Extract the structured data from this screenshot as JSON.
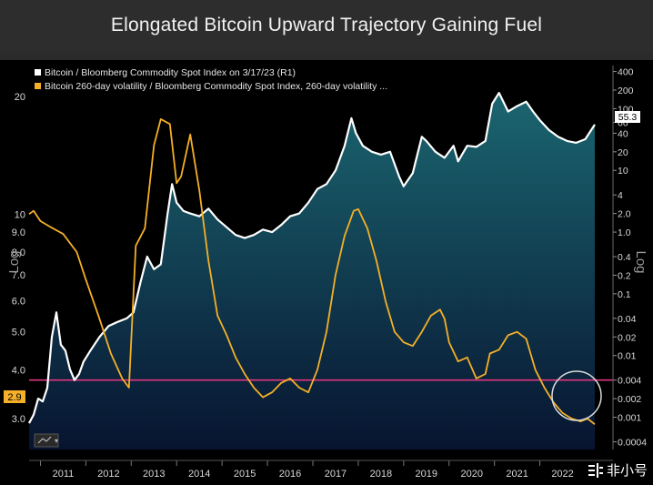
{
  "chart_data": {
    "type": "line",
    "title": "Elongated Bitcoin Upward Trajectory Gaining Fuel",
    "x_ticks": [
      "2011",
      "2012",
      "2013",
      "2014",
      "2015",
      "2016",
      "2017",
      "2018",
      "2019",
      "2020",
      "2021",
      "2022"
    ],
    "x_range": [
      2010.75,
      2023.21
    ],
    "left_axis": {
      "label": "Log",
      "scale": "log",
      "ticks": [
        "20",
        "10",
        "9.0",
        "8.0",
        "7.0",
        "6.0",
        "5.0",
        "4.0",
        "3.0"
      ],
      "range": [
        2.5,
        24
      ]
    },
    "right_axis": {
      "label": "Log",
      "scale": "log",
      "ticks": [
        "400",
        "200",
        "100",
        "60",
        "40",
        "20",
        "10",
        "4",
        "2.0",
        "1.0",
        "0.4",
        "0.2",
        "0.1",
        "0.04",
        "0.02",
        "0.01",
        "0.004",
        "0.002",
        "0.001",
        "0.0004"
      ],
      "range": [
        0.0003,
        500
      ]
    },
    "series": [
      {
        "name": "Bitcoin / Bloomberg Commodity Spot Index on 3/17/23 (R1)",
        "axis": "right",
        "color": "#ffffff",
        "x": [
          2010.75,
          2010.85,
          2010.95,
          2011.05,
          2011.15,
          2011.25,
          2011.35,
          2011.45,
          2011.55,
          2011.65,
          2011.75,
          2011.85,
          2011.95,
          2012.1,
          2012.3,
          2012.5,
          2012.7,
          2012.9,
          2013.05,
          2013.2,
          2013.35,
          2013.5,
          2013.65,
          2013.8,
          2013.9,
          2014.0,
          2014.15,
          2014.3,
          2014.5,
          2014.7,
          2014.9,
          2015.1,
          2015.3,
          2015.5,
          2015.7,
          2015.9,
          2016.1,
          2016.3,
          2016.5,
          2016.7,
          2016.9,
          2017.1,
          2017.3,
          2017.5,
          2017.7,
          2017.85,
          2017.95,
          2018.1,
          2018.3,
          2018.5,
          2018.7,
          2018.9,
          2019.0,
          2019.2,
          2019.4,
          2019.5,
          2019.7,
          2019.9,
          2020.1,
          2020.2,
          2020.4,
          2020.6,
          2020.8,
          2020.95,
          2021.1,
          2021.3,
          2021.5,
          2021.7,
          2021.85,
          2022.0,
          2022.2,
          2022.4,
          2022.6,
          2022.8,
          2023.0,
          2023.21
        ],
        "values": [
          0.0008,
          0.0011,
          0.002,
          0.0018,
          0.003,
          0.02,
          0.05,
          0.015,
          0.012,
          0.006,
          0.004,
          0.005,
          0.008,
          0.012,
          0.02,
          0.03,
          0.035,
          0.04,
          0.05,
          0.15,
          0.4,
          0.25,
          0.3,
          2.0,
          6.0,
          3.0,
          2.2,
          2.0,
          1.8,
          2.4,
          1.6,
          1.2,
          0.9,
          0.8,
          0.9,
          1.1,
          1.0,
          1.3,
          1.8,
          2.0,
          3.0,
          5.0,
          6.0,
          10.0,
          25.0,
          70.0,
          40.0,
          25.0,
          20.0,
          18.0,
          20.0,
          8.0,
          5.5,
          9.0,
          35.0,
          30.0,
          20.0,
          16.0,
          25.0,
          14.0,
          25.0,
          24.0,
          30.0,
          120.0,
          180.0,
          90.0,
          110.0,
          130.0,
          90.0,
          65.0,
          45.0,
          35.0,
          30.0,
          28.0,
          32.0,
          55.3
        ]
      },
      {
        "name": "Bitcoin 260-day volatility / Bloomberg Commodity Spot Index, 260-day volatility ...",
        "axis": "left",
        "color": "#f5b027",
        "x": [
          2010.75,
          2010.85,
          2011.0,
          2011.2,
          2011.5,
          2011.8,
          2012.0,
          2012.3,
          2012.55,
          2012.8,
          2012.95,
          2013.1,
          2013.3,
          2013.5,
          2013.65,
          2013.85,
          2014.0,
          2014.1,
          2014.3,
          2014.5,
          2014.7,
          2014.9,
          2015.1,
          2015.3,
          2015.5,
          2015.7,
          2015.9,
          2016.1,
          2016.3,
          2016.5,
          2016.7,
          2016.9,
          2017.1,
          2017.3,
          2017.5,
          2017.7,
          2017.9,
          2018.0,
          2018.2,
          2018.4,
          2018.6,
          2018.8,
          2019.0,
          2019.2,
          2019.4,
          2019.6,
          2019.8,
          2019.9,
          2020.0,
          2020.2,
          2020.4,
          2020.6,
          2020.8,
          2020.9,
          2021.1,
          2021.3,
          2021.5,
          2021.7,
          2021.9,
          2022.1,
          2022.3,
          2022.5,
          2022.7,
          2022.9,
          2023.05,
          2023.21
        ],
        "values": [
          10.0,
          10.2,
          9.6,
          9.3,
          8.9,
          8.0,
          6.8,
          5.4,
          4.4,
          3.8,
          3.6,
          8.3,
          9.2,
          15.0,
          17.5,
          17.0,
          12.0,
          12.5,
          16.0,
          11.5,
          7.6,
          5.5,
          4.9,
          4.3,
          3.9,
          3.6,
          3.4,
          3.5,
          3.7,
          3.8,
          3.6,
          3.5,
          4.0,
          5.0,
          7.0,
          8.8,
          10.2,
          10.3,
          9.2,
          7.6,
          6.0,
          5.0,
          4.7,
          4.6,
          5.0,
          5.5,
          5.7,
          5.4,
          4.7,
          4.2,
          4.3,
          3.8,
          3.9,
          4.4,
          4.5,
          4.9,
          5.0,
          4.8,
          4.0,
          3.6,
          3.3,
          3.1,
          3.0,
          2.95,
          3.0,
          2.9
        ]
      }
    ],
    "reference_line": {
      "value": 0.004,
      "axis": "right",
      "color": "#e0357f"
    },
    "last_value_labels": {
      "left": "2.9",
      "right": "55.3"
    },
    "annotation": "circle highlighting latest lows near 2022-2023",
    "legend_placement": "top-left",
    "grid": false
  },
  "watermark": {
    "text": "非小号",
    "icon": "exchange-logo-icon"
  },
  "colors": {
    "background": "#000000",
    "title_bar": "#2d2d2d",
    "area_top": "#1b6670",
    "area_bottom": "#071430",
    "btc_line": "#ffffff",
    "vol_line": "#f5b027",
    "ref_line": "#e0357f"
  }
}
